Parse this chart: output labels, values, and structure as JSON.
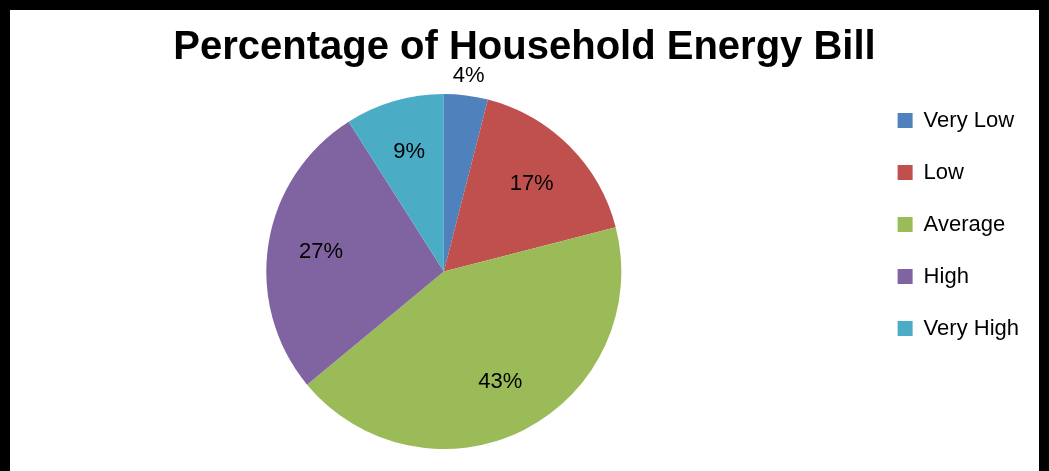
{
  "chart_data": {
    "type": "pie",
    "title": "Percentage of Household Energy Bill",
    "categories": [
      "Very Low",
      "Low",
      "Average",
      "High",
      "Very High"
    ],
    "values": [
      4,
      17,
      43,
      27,
      9
    ],
    "colors": [
      "#4f81bd",
      "#c0504d",
      "#9bbb59",
      "#8064a2",
      "#4bacc6"
    ],
    "value_labels": [
      "4%",
      "17%",
      "43%",
      "27%",
      "9%"
    ],
    "legend": "right"
  }
}
